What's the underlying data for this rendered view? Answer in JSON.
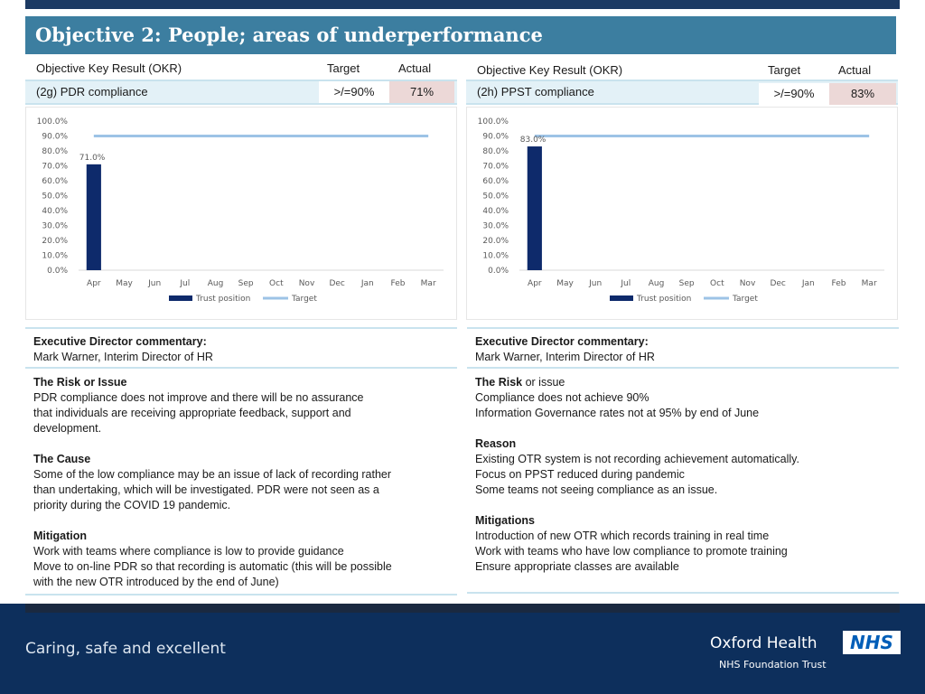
{
  "title": "Objective 2: People; areas of underperformance",
  "okr_headers": {
    "okr": "Objective Key Result (OKR)",
    "target": "Target",
    "actual": "Actual"
  },
  "panels": [
    {
      "okr_name": "(2g) PDR compliance",
      "target": ">/=90%",
      "actual": "71%",
      "director_heading": "Executive Director commentary:",
      "director_name": "Mark Warner, Interim Director of HR",
      "risk_heading": "The Risk or Issue",
      "risk_lines": [
        "PDR compliance does not improve and there will be no assurance",
        "that individuals are receiving appropriate feedback, support and",
        "development."
      ],
      "cause_heading": "The Cause",
      "cause_lines": [
        "Some of the low compliance may be an issue of lack of recording rather",
        "than undertaking, which will be investigated.  PDR were not seen as a",
        "priority during the COVID 19 pandemic."
      ],
      "mitigation_heading": "Mitigation",
      "mitigation_lines": [
        "Work with teams where compliance is low to provide guidance",
        "Move to on-line PDR so that recording is automatic (this will be possible",
        "with the new OTR introduced by the end of June)"
      ]
    },
    {
      "okr_name": "(2h) PPST compliance",
      "target": ">/=90%",
      "actual": "83%",
      "director_heading": "Executive Director commentary:",
      "director_name": "Mark Warner, Interim Director of HR",
      "risk_heading_bold": "The Risk",
      "risk_heading_rest": " or issue",
      "risk_lines": [
        "Compliance does not achieve 90%",
        "Information Governance rates not at 95% by end of June"
      ],
      "reason_heading": "Reason",
      "reason_lines": [
        "Existing OTR system is not recording achievement automatically.",
        "Focus on PPST reduced during pandemic",
        "Some teams not seeing compliance as an issue."
      ],
      "mitigation_heading": "Mitigations",
      "mitigation_lines": [
        "Introduction of new OTR which records training in real time",
        "Work with teams who have low compliance to promote training",
        "Ensure appropriate classes are available"
      ]
    }
  ],
  "chart_data": [
    {
      "type": "bar",
      "categories": [
        "Apr",
        "May",
        "Jun",
        "Jul",
        "Aug",
        "Sep",
        "Oct",
        "Nov",
        "Dec",
        "Jan",
        "Feb",
        "Mar"
      ],
      "series": [
        {
          "name": "Trust position",
          "type": "bar",
          "values": [
            71.0,
            null,
            null,
            null,
            null,
            null,
            null,
            null,
            null,
            null,
            null,
            null
          ]
        },
        {
          "name": "Target",
          "type": "line",
          "values": [
            90,
            90,
            90,
            90,
            90,
            90,
            90,
            90,
            90,
            90,
            90,
            90
          ]
        }
      ],
      "data_labels": [
        "71.0%"
      ],
      "yticks": [
        "0.0%",
        "10.0%",
        "20.0%",
        "30.0%",
        "40.0%",
        "50.0%",
        "60.0%",
        "70.0%",
        "80.0%",
        "90.0%",
        "100.0%"
      ],
      "ylim": [
        0,
        100
      ],
      "grid": false,
      "legend_position": "bottom",
      "colors": {
        "bar": "#0e2a6b",
        "target": "#9dc3e6",
        "axis": "#d9d9d9"
      }
    },
    {
      "type": "bar",
      "categories": [
        "Apr",
        "May",
        "Jun",
        "Jul",
        "Aug",
        "Sep",
        "Oct",
        "Nov",
        "Dec",
        "Jan",
        "Feb",
        "Mar"
      ],
      "series": [
        {
          "name": "Trust position",
          "type": "bar",
          "values": [
            83.0,
            null,
            null,
            null,
            null,
            null,
            null,
            null,
            null,
            null,
            null,
            null
          ]
        },
        {
          "name": "Target",
          "type": "line",
          "values": [
            90,
            90,
            90,
            90,
            90,
            90,
            90,
            90,
            90,
            90,
            90,
            90
          ]
        }
      ],
      "data_labels": [
        "83.0%"
      ],
      "yticks": [
        "0.0%",
        "10.0%",
        "20.0%",
        "30.0%",
        "40.0%",
        "50.0%",
        "60.0%",
        "70.0%",
        "80.0%",
        "90.0%",
        "100.0%"
      ],
      "ylim": [
        0,
        100
      ],
      "grid": false,
      "legend_position": "bottom",
      "colors": {
        "bar": "#0e2a6b",
        "target": "#9dc3e6",
        "axis": "#d9d9d9"
      }
    }
  ],
  "footer": {
    "tagline": "Caring, safe and excellent",
    "org_name": "Oxford Health",
    "org_subtitle": "NHS Foundation Trust",
    "logo_text": "NHS"
  }
}
